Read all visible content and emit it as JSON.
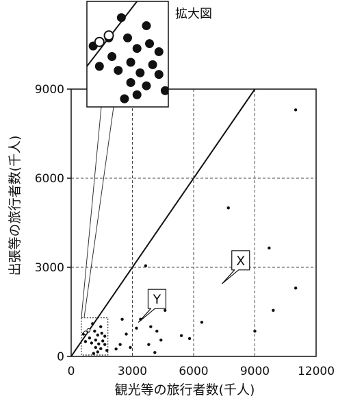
{
  "chart_data": {
    "type": "scatter",
    "xlabel": "観光等の旅行者数(千人)",
    "ylabel": "出張等の旅行者数(千人)",
    "xlim": [
      0,
      12000
    ],
    "ylim": [
      0,
      9000
    ],
    "xticks": [
      0,
      3000,
      6000,
      9000,
      12000
    ],
    "yticks": [
      0,
      3000,
      6000,
      9000
    ],
    "tick_labels_x": [
      "0",
      "3000",
      "6000",
      "9000",
      "12000"
    ],
    "tick_labels_y": [
      "0",
      "3000",
      "6000",
      "9000"
    ],
    "grid": "dashed",
    "reference_line": {
      "x": [
        0,
        9000
      ],
      "y": [
        0,
        9000
      ]
    },
    "series": [
      {
        "values_xy": [
          [
            11000,
            8300
          ],
          [
            7700,
            5000
          ],
          [
            9700,
            3650
          ],
          [
            3650,
            3050
          ],
          [
            11000,
            2300
          ],
          [
            9900,
            1550
          ],
          [
            9000,
            850
          ],
          [
            6400,
            1150
          ],
          [
            4600,
            1550
          ],
          [
            3400,
            1250
          ],
          [
            2500,
            1250
          ],
          [
            3900,
            1000
          ],
          [
            3200,
            950
          ],
          [
            4200,
            850
          ],
          [
            4400,
            550
          ],
          [
            3800,
            400
          ],
          [
            5400,
            700
          ],
          [
            5800,
            600
          ],
          [
            2700,
            750
          ],
          [
            2400,
            400
          ],
          [
            2900,
            300
          ],
          [
            2200,
            250
          ],
          [
            4100,
            130
          ],
          [
            1050,
            1100
          ],
          [
            1450,
            1000
          ],
          [
            850,
            850
          ],
          [
            1150,
            850
          ],
          [
            1500,
            780
          ],
          [
            600,
            750
          ],
          [
            1300,
            720
          ],
          [
            1650,
            680
          ],
          [
            900,
            620
          ],
          [
            1200,
            550
          ],
          [
            1550,
            520
          ],
          [
            700,
            500
          ],
          [
            1000,
            450
          ],
          [
            1350,
            420
          ],
          [
            1650,
            400
          ],
          [
            1200,
            300
          ],
          [
            1450,
            260
          ],
          [
            1750,
            200
          ],
          [
            1300,
            150
          ],
          [
            1100,
            100
          ]
        ]
      },
      {
        "values_xy": [
          [
            700,
            800
          ],
          [
            850,
            880
          ]
        ],
        "marker": "open"
      }
    ],
    "annotations": [
      {
        "text": "X",
        "point": [
          7400,
          2450
        ]
      },
      {
        "text": "Y",
        "point": [
          3300,
          1150
        ]
      }
    ],
    "inset": {
      "label": "拡大図",
      "region_x": [
        500,
        1800
      ],
      "region_y": [
        0,
        1300
      ]
    }
  }
}
